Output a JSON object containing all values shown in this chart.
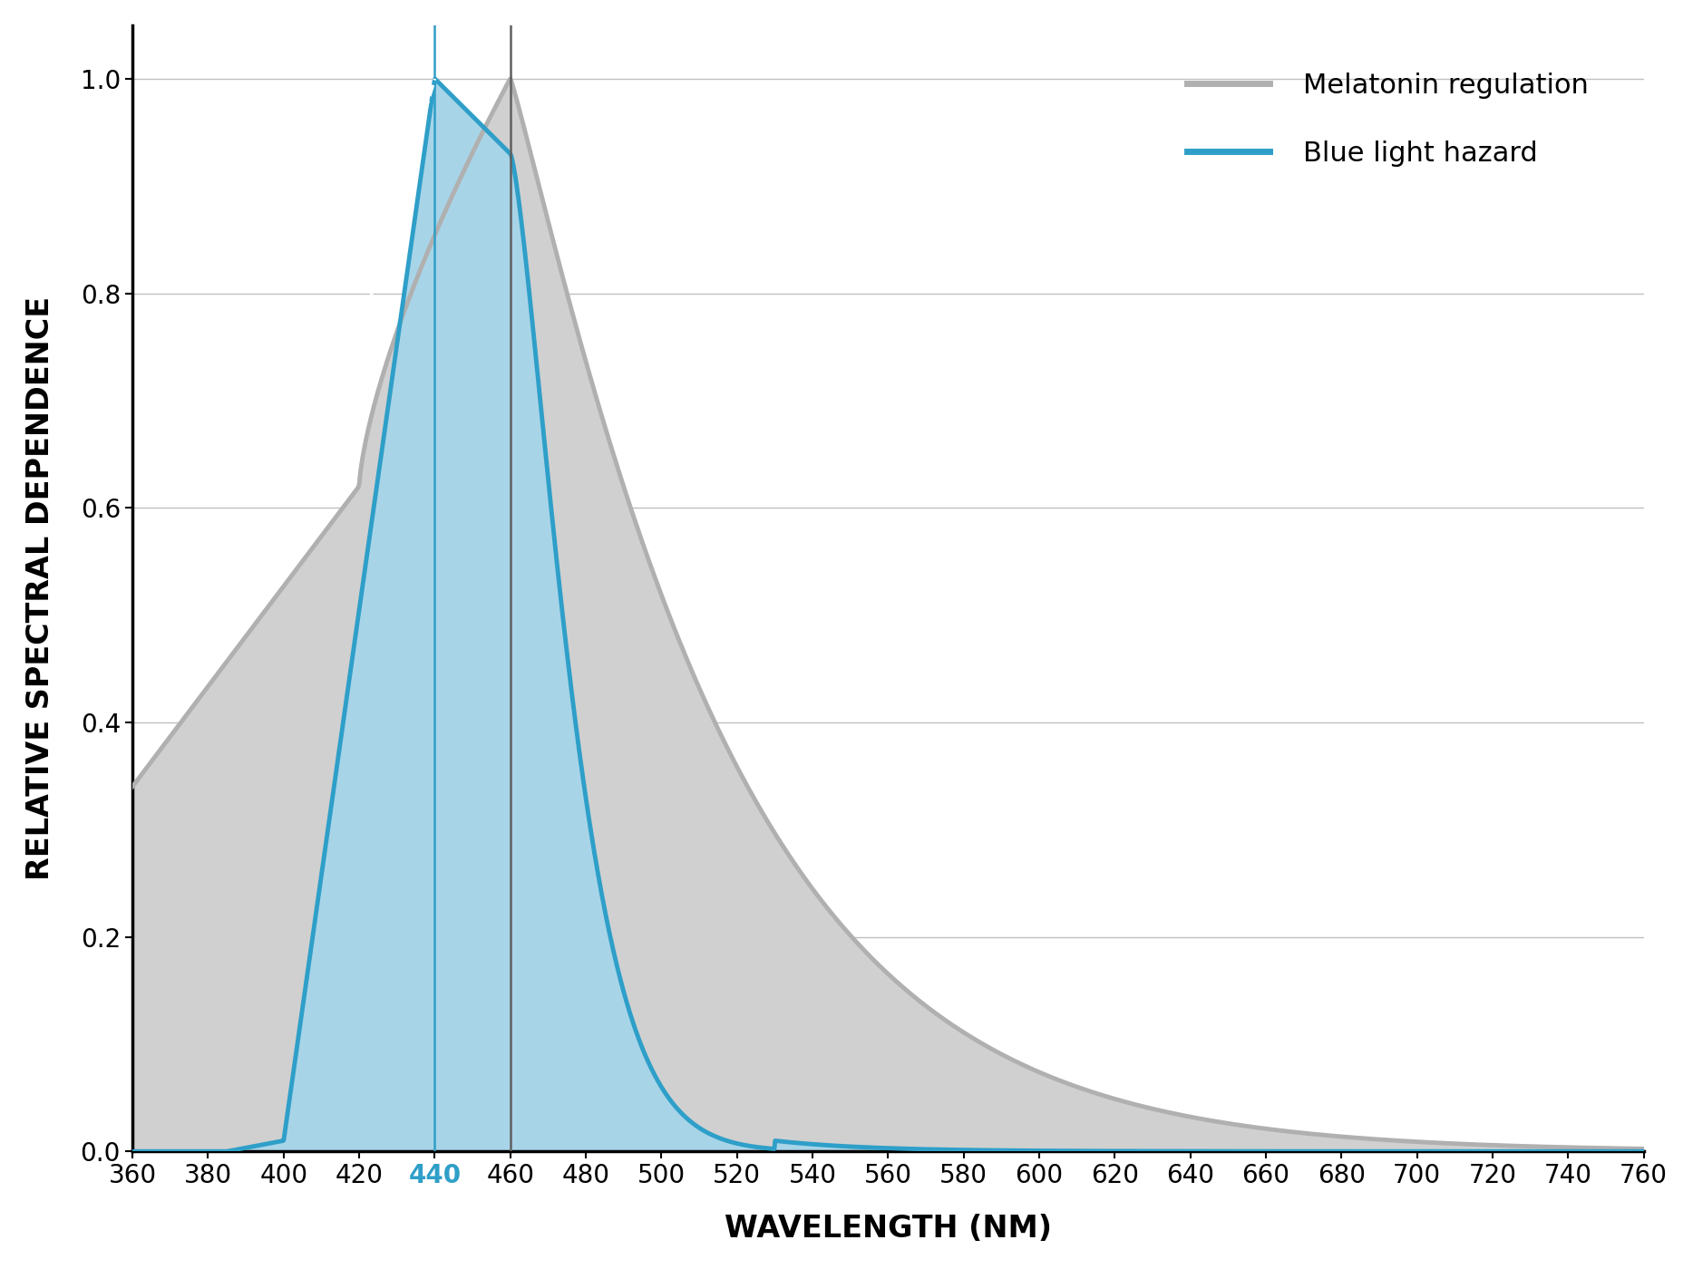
{
  "title": "",
  "xlabel": "WAVELENGTH (NM)",
  "ylabel": "RELATIVE SPECTRAL DEPENDENCE",
  "xlim": [
    360,
    760
  ],
  "ylim": [
    0,
    1.05
  ],
  "xticks": [
    360,
    380,
    400,
    420,
    440,
    460,
    480,
    500,
    520,
    540,
    560,
    580,
    600,
    620,
    640,
    660,
    680,
    700,
    720,
    740,
    760
  ],
  "yticks": [
    0.0,
    0.2,
    0.4,
    0.6,
    0.8,
    1.0
  ],
  "background_color": "#ffffff",
  "melatonin_color": "#b0b0b0",
  "melatonin_fill": "#d0d0d0",
  "blue_hazard_color": "#2e9fc8",
  "blue_hazard_fill": "#a8d4e8",
  "vline_440_color": "#2e9fc8",
  "vline_460_color": "#606060",
  "dashed_line_color": "#ffffff",
  "legend_melatonin": "Melatonin regulation",
  "legend_blue": "Blue light hazard",
  "vline_440_label": "440",
  "vline_460_label": "460"
}
